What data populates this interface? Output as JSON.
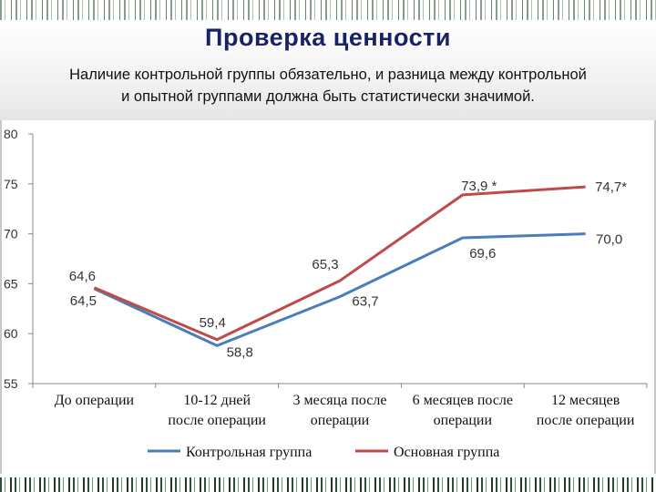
{
  "slide": {
    "title": "Проверка ценности",
    "subtitle_line1": "Наличие контрольной группы обязательно, и разница между контрольной",
    "subtitle_line2": "и опытной группами должна быть статистически значимой."
  },
  "chart_data": {
    "type": "line",
    "title": "",
    "xlabel": "",
    "ylabel": "",
    "ylim": [
      55,
      80
    ],
    "yticks": [
      55,
      60,
      65,
      70,
      75,
      80
    ],
    "grid": false,
    "legend_position": "bottom",
    "categories": [
      [
        "До операции",
        ""
      ],
      [
        "10-12 дней",
        "после операции"
      ],
      [
        "3 месяца после",
        "операции"
      ],
      [
        "6 месяцев после",
        "операции"
      ],
      [
        "12 месяцев",
        "после операции"
      ]
    ],
    "series": [
      {
        "name": "Контрольная группа",
        "color": "#4a7ebb",
        "values": [
          64.5,
          58.8,
          63.7,
          69.6,
          70.0
        ],
        "labels": [
          "64,5",
          "58,8",
          "63,7",
          "69,6",
          "70,0"
        ]
      },
      {
        "name": "Основная группа",
        "color": "#be4b48",
        "values": [
          64.6,
          59.4,
          65.3,
          73.9,
          74.7
        ],
        "labels": [
          "64,6",
          "59,4",
          "65,3",
          "73,9 *",
          "74,7*"
        ]
      }
    ]
  }
}
